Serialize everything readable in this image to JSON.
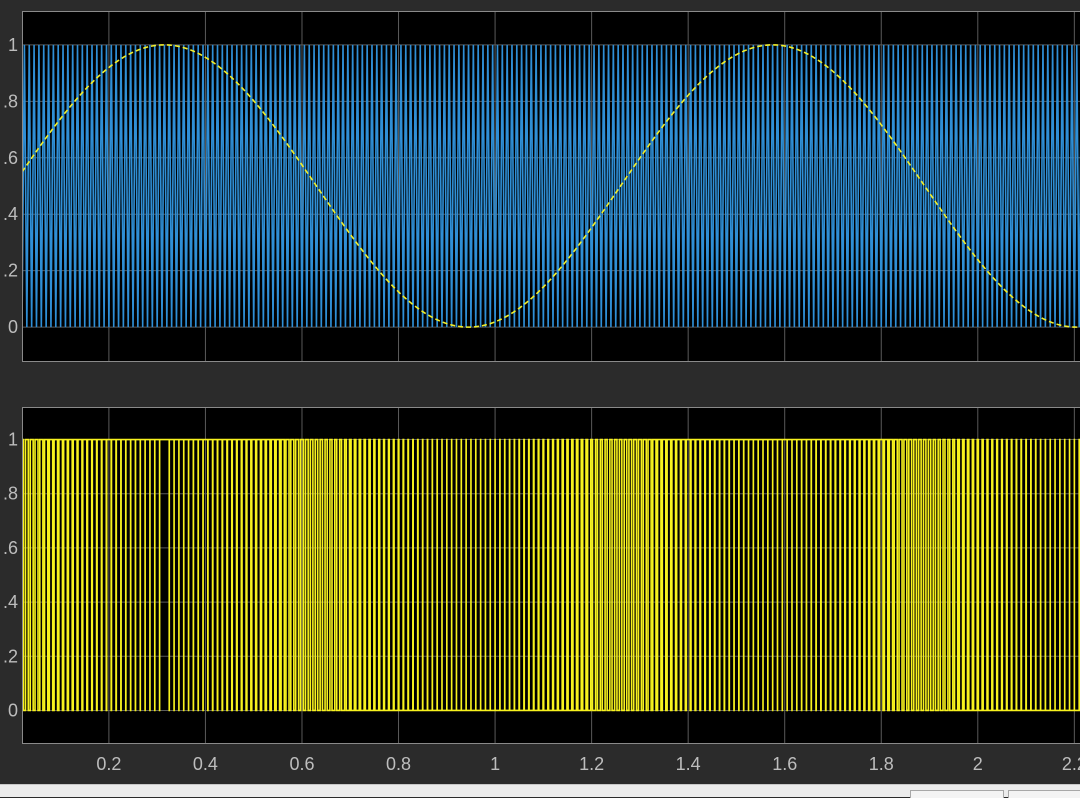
{
  "colors": {
    "figure_bg": "#2b2b2b",
    "axes_bg": "#000000",
    "grid": "#5a5a5a",
    "tick_text": "#bdbdbd",
    "carrier": "#2f8fd6",
    "reference": "#f2ef2a",
    "pwm": "#f7f21e",
    "status_bar": "#ececec"
  },
  "chart_data": [
    {
      "type": "line",
      "title": "",
      "xlabel": "",
      "ylabel": "",
      "xlim": [
        0.02,
        2.22
      ],
      "ylim": [
        -0.12,
        1.12
      ],
      "grid": true,
      "yticks": [
        0,
        0.2,
        0.4,
        0.6,
        0.8,
        1
      ],
      "ytick_labels": [
        "0",
        ".2",
        ".4",
        ".6",
        ".8",
        "1"
      ],
      "xtick_values": [
        0.2,
        0.4,
        0.6,
        0.8,
        1,
        1.2,
        1.4,
        1.6,
        1.8,
        2,
        2.2
      ],
      "series": [
        {
          "role": "carrier",
          "kind": "triangle",
          "color": "#2f8fd6",
          "frequency_hz": 100,
          "min": 0,
          "max": 1
        },
        {
          "role": "reference",
          "kind": "sine",
          "color": "#f2ef2a",
          "dashed": true,
          "offset": 0.5,
          "amplitude": 0.5,
          "frequency_hz": 0.7937,
          "peak_times": [
            0.315,
            1.575
          ],
          "trough_times": [
            0.945,
            2.205
          ]
        }
      ]
    },
    {
      "type": "line",
      "title": "",
      "xlabel": "",
      "ylabel": "",
      "xlim": [
        0.02,
        2.22
      ],
      "ylim": [
        -0.12,
        1.12
      ],
      "grid": true,
      "yticks": [
        0,
        0.2,
        0.4,
        0.6,
        0.8,
        1
      ],
      "ytick_labels": [
        "0",
        ".2",
        ".4",
        ".6",
        ".8",
        "1"
      ],
      "xticks": [
        0.2,
        0.4,
        0.6,
        0.8,
        1,
        1.2,
        1.4,
        1.6,
        1.8,
        2,
        2.2
      ],
      "xtick_labels": [
        "0.2",
        "0.4",
        "0.6",
        "0.8",
        "1",
        "1.2",
        "1.4",
        "1.6",
        "1.8",
        "2",
        "2.2"
      ],
      "series": [
        {
          "role": "pwm_output",
          "kind": "pulse",
          "color": "#f7f21e",
          "levels": [
            0,
            1
          ],
          "rule": "1 when reference > carrier"
        }
      ]
    }
  ]
}
